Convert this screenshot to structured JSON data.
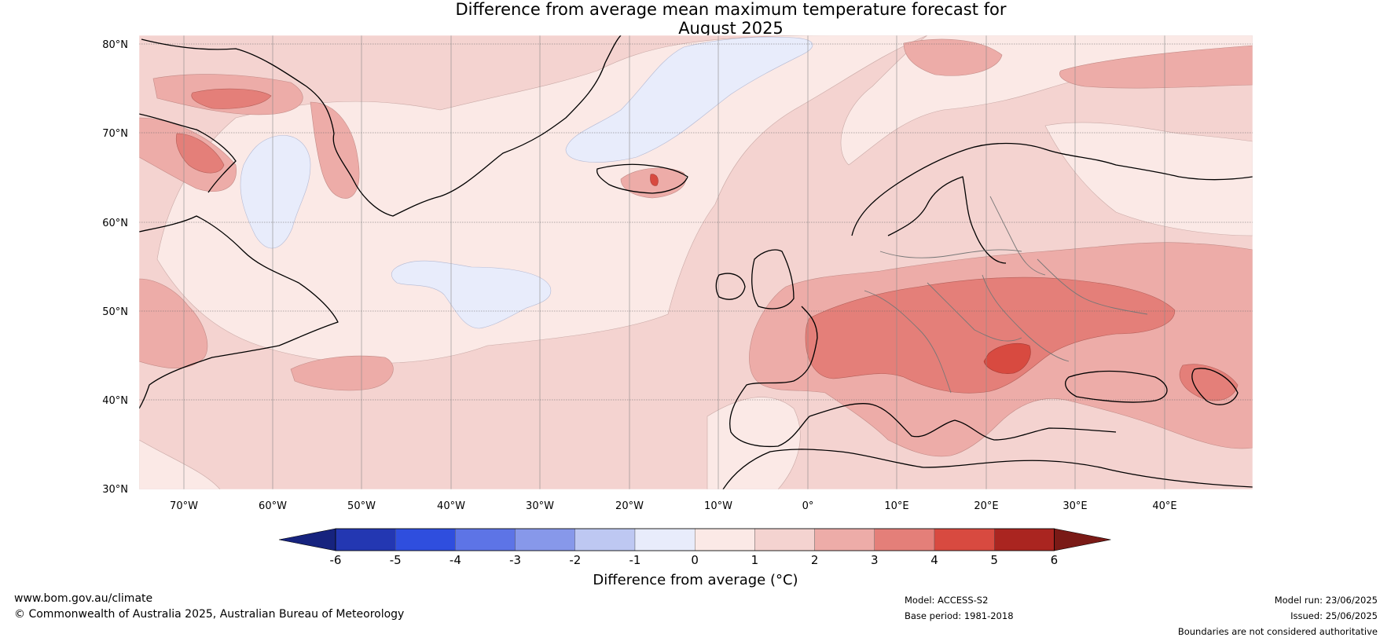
{
  "title_line1": "Difference from average mean maximum temperature forecast for",
  "title_line2": "August 2025",
  "map": {
    "lat_labels": [
      "80°N",
      "70°N",
      "60°N",
      "50°N",
      "40°N",
      "30°N"
    ],
    "lon_labels": [
      "70°W",
      "60°W",
      "50°W",
      "40°W",
      "30°W",
      "20°W",
      "10°W",
      "0°",
      "10°E",
      "20°E",
      "30°E",
      "40°E"
    ],
    "extent": {
      "lon_min": -75,
      "lon_max": 50,
      "lat_min": 30,
      "lat_max": 81
    }
  },
  "colorbar": {
    "ticks": [
      "-6",
      "-5",
      "-4",
      "-3",
      "-2",
      "-1",
      "0",
      "1",
      "2",
      "3",
      "4",
      "5",
      "6"
    ],
    "colors": [
      "#16237e",
      "#2337b2",
      "#2f4ede",
      "#5d74e6",
      "#8798ea",
      "#bec8f2",
      "#e8ecfb",
      "#fbe9e6",
      "#f4d3d0",
      "#edaca8",
      "#e47f79",
      "#d84a40",
      "#aa2520",
      "#7a1a16"
    ],
    "label": "Difference from average (°C)"
  },
  "footer": {
    "website": "www.bom.gov.au/climate",
    "copyright": "© Commonwealth of Australia 2025, Australian Bureau of Meteorology",
    "model": "Model: ACCESS-S2",
    "base_period": "Base period: 1981-2018",
    "model_run": "Model run: 23/06/2025",
    "issued": "Issued: 25/06/2025",
    "disclaimer": "Boundaries are not considered authoritative"
  }
}
